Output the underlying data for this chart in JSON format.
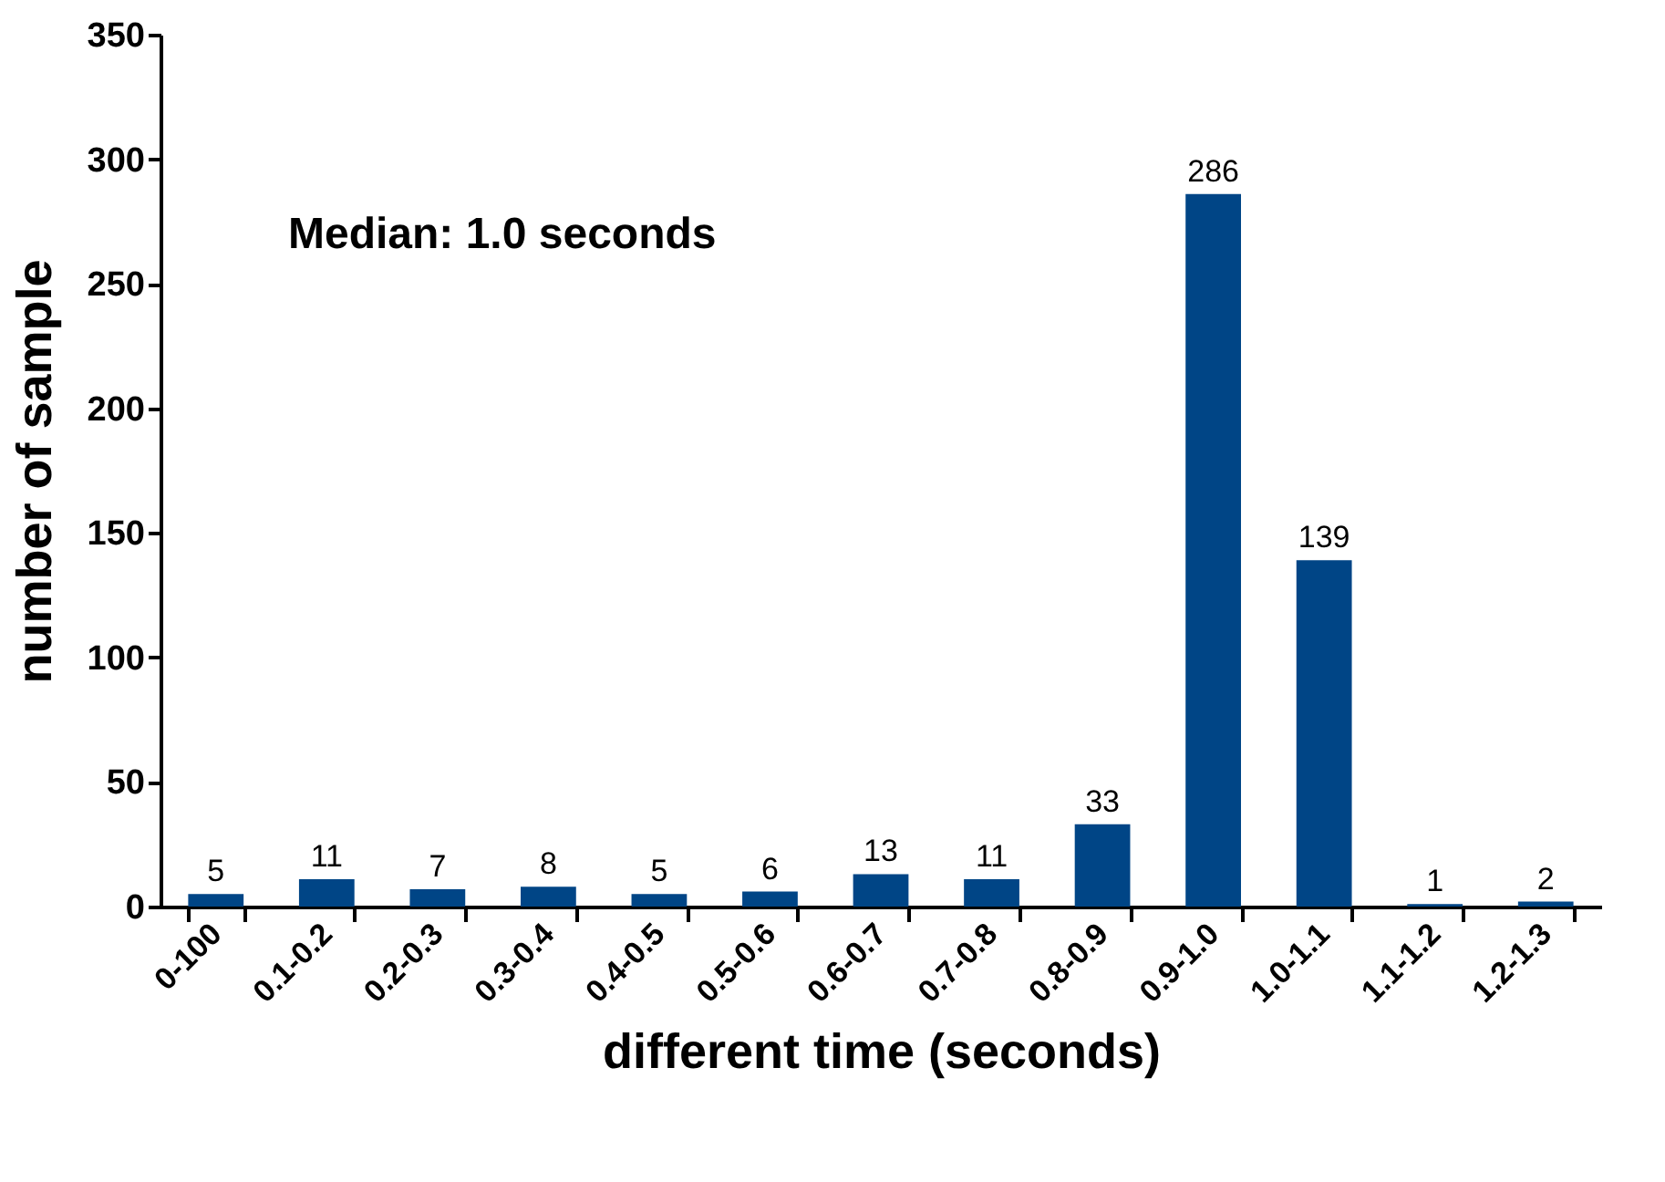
{
  "chart_data": {
    "type": "bar",
    "xlabel": "different time (seconds)",
    "ylabel": "number of sample",
    "categories": [
      "0-100",
      "0.1-0.2",
      "0.2-0.3",
      "0.3-0.4",
      "0.4-0.5",
      "0.5-0.6",
      "0.6-0.7",
      "0.7-0.8",
      "0.8-0.9",
      "0.9-1.0",
      "1.0-1.1",
      "1.1-1.2",
      "1.2-1.3"
    ],
    "values": [
      5,
      11,
      7,
      8,
      5,
      6,
      13,
      11,
      33,
      286,
      139,
      1,
      2
    ],
    "color": "#004586",
    "ylim": [
      0,
      350
    ],
    "yticks": [
      0,
      50,
      100,
      150,
      200,
      250,
      300,
      350
    ],
    "grid": false,
    "data_labels": true,
    "annotations": [
      "Median: 1.0 seconds"
    ]
  }
}
